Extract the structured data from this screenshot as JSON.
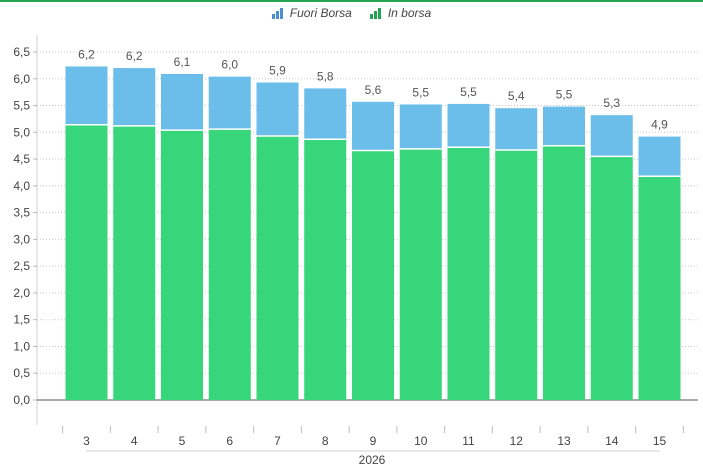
{
  "chart_data": {
    "type": "bar",
    "stacked": true,
    "categories": [
      "3",
      "4",
      "5",
      "6",
      "7",
      "8",
      "9",
      "10",
      "11",
      "12",
      "13",
      "14",
      "15"
    ],
    "series": [
      {
        "name": "In borsa",
        "color": "#37d67a",
        "values": [
          5.14,
          5.12,
          5.04,
          5.06,
          4.93,
          4.87,
          4.66,
          4.69,
          4.72,
          4.67,
          4.75,
          4.55,
          4.18
        ]
      },
      {
        "name": "Fuori Borsa",
        "color": "#6bbdea",
        "values": [
          1.09,
          1.08,
          1.05,
          0.98,
          1.0,
          0.95,
          0.91,
          0.83,
          0.81,
          0.78,
          0.73,
          0.77,
          0.74
        ]
      }
    ],
    "totals_labels": [
      "6,2",
      "6,2",
      "6,1",
      "6,0",
      "5,9",
      "5,8",
      "5,6",
      "5,5",
      "5,5",
      "5,4",
      "5,5",
      "5,3",
      "4,9"
    ],
    "y_ticks": [
      "0,0",
      "0,5",
      "1,0",
      "1,5",
      "2,0",
      "2,5",
      "3,0",
      "3,5",
      "4,0",
      "4,5",
      "5,0",
      "5,5",
      "6,0",
      "6,5"
    ],
    "ylim": [
      0,
      6.5
    ],
    "x_group_label": "2026",
    "grid": true,
    "legend_position": "top-center"
  },
  "legend": {
    "items": [
      {
        "label": "Fuori Borsa",
        "icon": "bar-chart-icon",
        "color": "#4e8fd1"
      },
      {
        "label": "In borsa",
        "icon": "bar-chart-icon",
        "color": "#23a455"
      }
    ]
  }
}
